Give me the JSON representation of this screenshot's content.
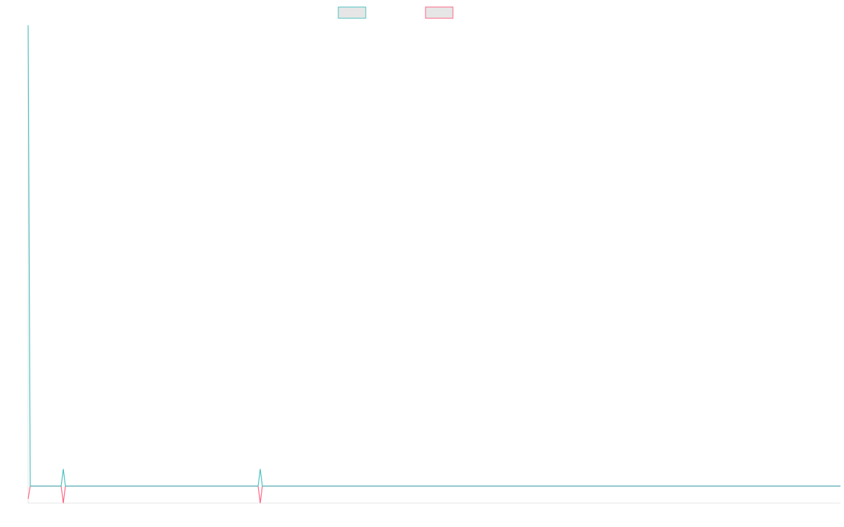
{
  "chart_data": {
    "type": "line",
    "x": [
      0,
      3,
      47,
      50,
      53,
      327,
      330,
      333,
      1155
    ],
    "xlim": [
      0,
      1155
    ],
    "ylim": [
      0,
      28
    ],
    "series": [
      {
        "color": "#4bc0c0",
        "values": [
          28,
          1,
          1,
          2,
          1,
          1,
          2,
          1,
          1
        ]
      },
      {
        "color": "#ff6384",
        "values": [
          0.25,
          1,
          1,
          0,
          1,
          1,
          0,
          1,
          1
        ]
      }
    ]
  }
}
